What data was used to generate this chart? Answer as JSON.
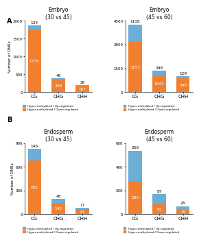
{
  "panels": [
    {
      "title": "Embryo\n(30 vs 45)",
      "categories": [
        "CG",
        "CHG",
        "CHH"
      ],
      "hypo": [
        134,
        46,
        28
      ],
      "hyper": [
        1735,
        338,
        167
      ],
      "ylim": 2000,
      "yticks": [
        0,
        500,
        1000,
        1500,
        2000
      ]
    },
    {
      "title": "Embryo\n(45 vs 60)",
      "categories": [
        "CG",
        "CHG",
        "CHH"
      ],
      "hypo": [
        1118,
        298,
        129
      ],
      "hyper": [
        3153,
        1041,
        848
      ],
      "ylim": 4500,
      "yticks": [
        0,
        1500,
        3000,
        4500
      ]
    },
    {
      "title": "Endosperm\n(30 vs 45)",
      "categories": [
        "CG",
        "CHG",
        "CHH"
      ],
      "hypo": [
        146,
        48,
        17
      ],
      "hyper": [
        682,
        142,
        61
      ],
      "ylim": 900,
      "yticks": [
        0,
        300,
        600,
        900
      ]
    },
    {
      "title": "Endosperm\n(45 vs 60)",
      "categories": [
        "CG",
        "CHG",
        "CHH"
      ],
      "hypo": [
        256,
        87,
        28
      ],
      "hyper": [
        280,
        81,
        39
      ],
      "ylim": 600,
      "yticks": [
        0,
        200,
        400,
        600
      ]
    }
  ],
  "hypo_color": "#6BAED6",
  "hyper_color": "#F08030",
  "bar_width": 0.55,
  "ylabel": "Number of DMRs",
  "legend_hypo": "Hypo-methylated / Up-regulated",
  "legend_hyper": "Hyper-methylated / Down-regulated",
  "row_labels": [
    "A",
    "B"
  ]
}
